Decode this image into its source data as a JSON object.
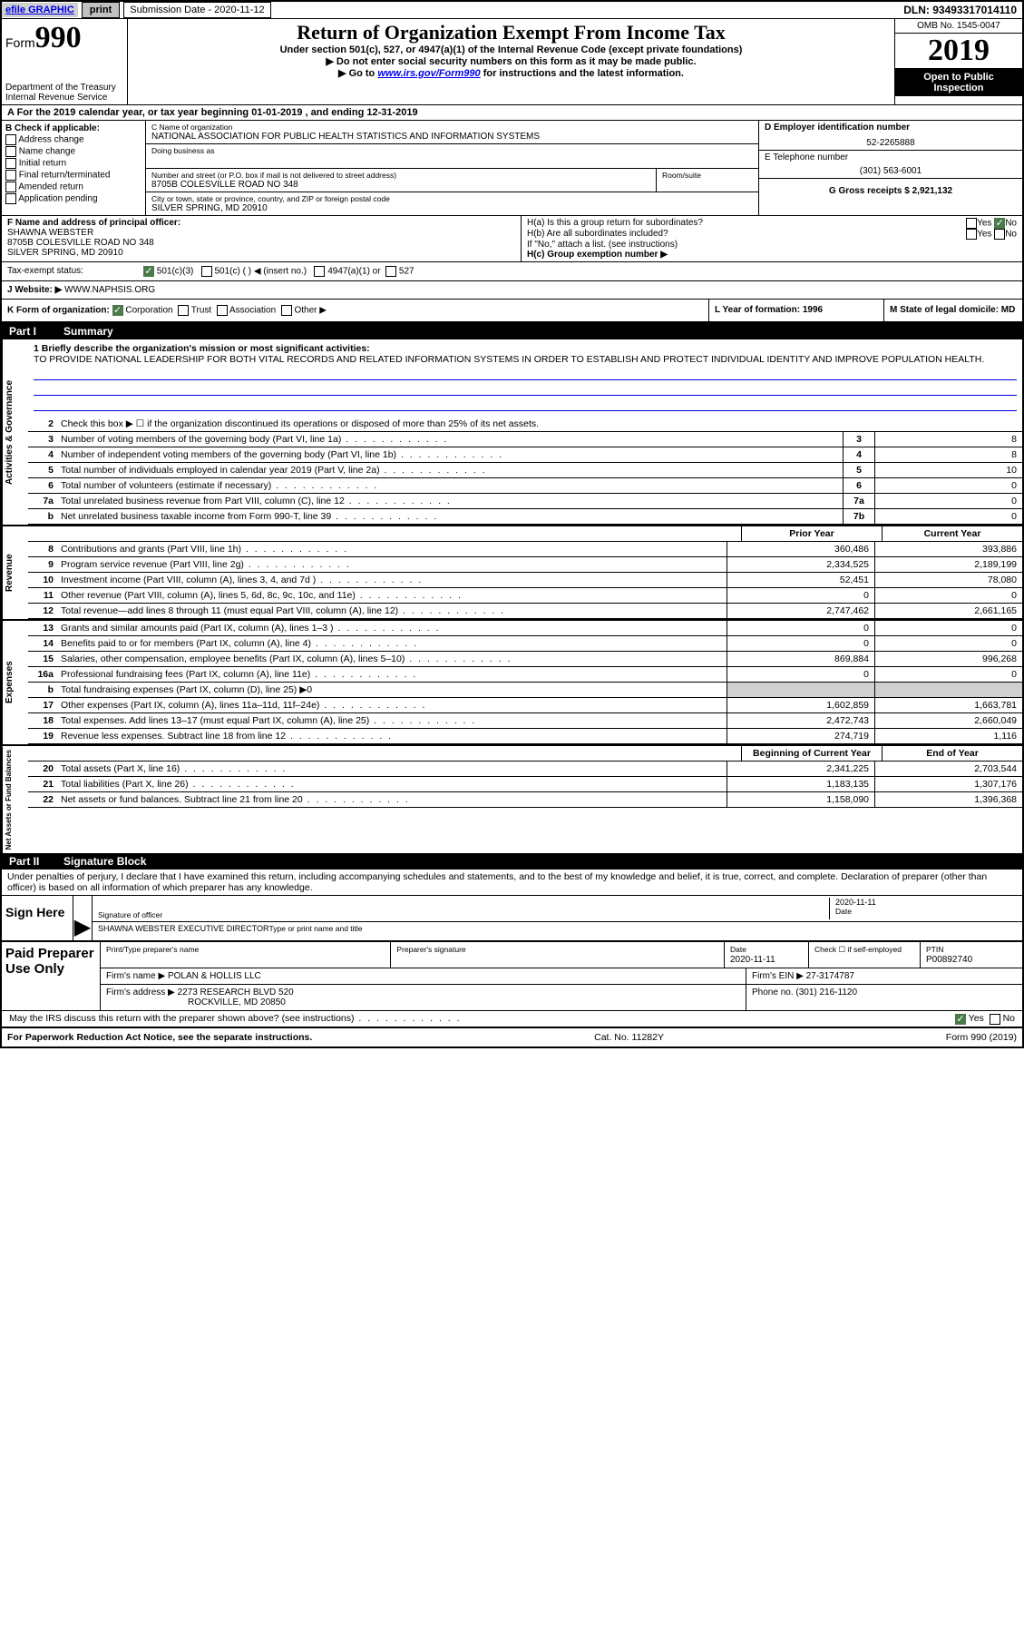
{
  "topbar": {
    "efile": "efile GRAPHIC",
    "print": "print",
    "sub_date_label": "Submission Date - 2020-11-12",
    "dln": "DLN: 93493317014110"
  },
  "header": {
    "form_word": "Form",
    "form_num": "990",
    "dept1": "Department of the Treasury",
    "dept2": "Internal Revenue Service",
    "title": "Return of Organization Exempt From Income Tax",
    "sub1": "Under section 501(c), 527, or 4947(a)(1) of the Internal Revenue Code (except private foundations)",
    "sub2": "▶ Do not enter social security numbers on this form as it may be made public.",
    "sub3_pre": "▶ Go to ",
    "sub3_link": "www.irs.gov/Form990",
    "sub3_post": " for instructions and the latest information.",
    "omb": "OMB No. 1545-0047",
    "year": "2019",
    "insp1": "Open to Public",
    "insp2": "Inspection"
  },
  "rowA": "A For the 2019 calendar year, or tax year beginning 01-01-2019   , and ending 12-31-2019",
  "boxB": {
    "title": "B Check if applicable:",
    "opts": [
      "Address change",
      "Name change",
      "Initial return",
      "Final return/terminated",
      "Amended return",
      "Application pending"
    ]
  },
  "boxC": {
    "name_label": "C Name of organization",
    "name": "NATIONAL ASSOCIATION FOR PUBLIC HEALTH STATISTICS AND INFORMATION SYSTEMS",
    "dba_label": "Doing business as",
    "addr_label": "Number and street (or P.O. box if mail is not delivered to street address)",
    "room_label": "Room/suite",
    "addr": "8705B COLESVILLE ROAD NO 348",
    "city_label": "City or town, state or province, country, and ZIP or foreign postal code",
    "city": "SILVER SPRING, MD  20910"
  },
  "boxD": {
    "label": "D Employer identification number",
    "val": "52-2265888"
  },
  "boxE": {
    "label": "E Telephone number",
    "val": "(301) 563-6001"
  },
  "boxG": {
    "label": "G Gross receipts $ 2,921,132"
  },
  "boxF": {
    "label": "F  Name and address of principal officer:",
    "name": "SHAWNA WEBSTER",
    "addr1": "8705B COLESVILLE ROAD NO 348",
    "addr2": "SILVER SPRING, MD  20910"
  },
  "boxH": {
    "ha": "H(a)  Is this a group return for subordinates?",
    "hb": "H(b)  Are all subordinates included?",
    "hb_note": "If \"No,\" attach a list. (see instructions)",
    "hc": "H(c)  Group exemption number ▶",
    "yes": "Yes",
    "no": "No"
  },
  "rowI": {
    "label": "Tax-exempt status:",
    "o1": "501(c)(3)",
    "o2": "501(c) (  ) ◀ (insert no.)",
    "o3": "4947(a)(1) or",
    "o4": "527"
  },
  "rowJ": {
    "label": "J   Website: ▶",
    "val": "WWW.NAPHSIS.ORG"
  },
  "rowK": {
    "label": "K Form of organization:",
    "o1": "Corporation",
    "o2": "Trust",
    "o3": "Association",
    "o4": "Other ▶",
    "l_label": "L Year of formation: 1996",
    "m_label": "M State of legal domicile: MD"
  },
  "part1": {
    "num": "Part I",
    "title": "Summary"
  },
  "mission": {
    "line1_label": "1  Briefly describe the organization's mission or most significant activities:",
    "text": "TO PROVIDE NATIONAL LEADERSHIP FOR BOTH VITAL RECORDS AND RELATED INFORMATION SYSTEMS IN ORDER TO ESTABLISH AND PROTECT INDIVIDUAL IDENTITY AND IMPROVE POPULATION HEALTH."
  },
  "side_labels": {
    "gov": "Activities & Governance",
    "rev": "Revenue",
    "exp": "Expenses",
    "net": "Net Assets or Fund Balances"
  },
  "lines_gov": [
    {
      "n": "2",
      "d": "Check this box ▶ ☐  if the organization discontinued its operations or disposed of more than 25% of its net assets."
    },
    {
      "n": "3",
      "d": "Number of voting members of the governing body (Part VI, line 1a)",
      "b": "3",
      "v": "8"
    },
    {
      "n": "4",
      "d": "Number of independent voting members of the governing body (Part VI, line 1b)",
      "b": "4",
      "v": "8"
    },
    {
      "n": "5",
      "d": "Total number of individuals employed in calendar year 2019 (Part V, line 2a)",
      "b": "5",
      "v": "10"
    },
    {
      "n": "6",
      "d": "Total number of volunteers (estimate if necessary)",
      "b": "6",
      "v": "0"
    },
    {
      "n": "7a",
      "d": "Total unrelated business revenue from Part VIII, column (C), line 12",
      "b": "7a",
      "v": "0"
    },
    {
      "n": "b",
      "d": "Net unrelated business taxable income from Form 990-T, line 39",
      "b": "7b",
      "v": "0"
    }
  ],
  "pycy": {
    "py": "Prior Year",
    "cy": "Current Year"
  },
  "lines_rev": [
    {
      "n": "8",
      "d": "Contributions and grants (Part VIII, line 1h)",
      "py": "360,486",
      "cy": "393,886"
    },
    {
      "n": "9",
      "d": "Program service revenue (Part VIII, line 2g)",
      "py": "2,334,525",
      "cy": "2,189,199"
    },
    {
      "n": "10",
      "d": "Investment income (Part VIII, column (A), lines 3, 4, and 7d )",
      "py": "52,451",
      "cy": "78,080"
    },
    {
      "n": "11",
      "d": "Other revenue (Part VIII, column (A), lines 5, 6d, 8c, 9c, 10c, and 11e)",
      "py": "0",
      "cy": "0"
    },
    {
      "n": "12",
      "d": "Total revenue—add lines 8 through 11 (must equal Part VIII, column (A), line 12)",
      "py": "2,747,462",
      "cy": "2,661,165"
    }
  ],
  "lines_exp": [
    {
      "n": "13",
      "d": "Grants and similar amounts paid (Part IX, column (A), lines 1–3 )",
      "py": "0",
      "cy": "0"
    },
    {
      "n": "14",
      "d": "Benefits paid to or for members (Part IX, column (A), line 4)",
      "py": "0",
      "cy": "0"
    },
    {
      "n": "15",
      "d": "Salaries, other compensation, employee benefits (Part IX, column (A), lines 5–10)",
      "py": "869,884",
      "cy": "996,268"
    },
    {
      "n": "16a",
      "d": "Professional fundraising fees (Part IX, column (A), line 11e)",
      "py": "0",
      "cy": "0"
    },
    {
      "n": "b",
      "d": "Total fundraising expenses (Part IX, column (D), line 25) ▶0",
      "shaded": true
    },
    {
      "n": "17",
      "d": "Other expenses (Part IX, column (A), lines 11a–11d, 11f–24e)",
      "py": "1,602,859",
      "cy": "1,663,781"
    },
    {
      "n": "18",
      "d": "Total expenses. Add lines 13–17 (must equal Part IX, column (A), line 25)",
      "py": "2,472,743",
      "cy": "2,660,049"
    },
    {
      "n": "19",
      "d": "Revenue less expenses. Subtract line 18 from line 12",
      "py": "274,719",
      "cy": "1,116"
    }
  ],
  "net_header": {
    "py": "Beginning of Current Year",
    "cy": "End of Year"
  },
  "lines_net": [
    {
      "n": "20",
      "d": "Total assets (Part X, line 16)",
      "py": "2,341,225",
      "cy": "2,703,544"
    },
    {
      "n": "21",
      "d": "Total liabilities (Part X, line 26)",
      "py": "1,183,135",
      "cy": "1,307,176"
    },
    {
      "n": "22",
      "d": "Net assets or fund balances. Subtract line 21 from line 20",
      "py": "1,158,090",
      "cy": "1,396,368"
    }
  ],
  "part2": {
    "num": "Part II",
    "title": "Signature Block"
  },
  "sig": {
    "decl": "Under penalties of perjury, I declare that I have examined this return, including accompanying schedules and statements, and to the best of my knowledge and belief, it is true, correct, and complete. Declaration of preparer (other than officer) is based on all information of which preparer has any knowledge.",
    "sign_here": "Sign Here",
    "sig_officer": "Signature of officer",
    "date_label": "Date",
    "date_val": "2020-11-11",
    "name": "SHAWNA WEBSTER  EXECUTIVE DIRECTOR",
    "type_label": "Type or print name and title"
  },
  "prep": {
    "label": "Paid Preparer Use Only",
    "print_label": "Print/Type preparer's name",
    "sig_label": "Preparer's signature",
    "date_label": "Date",
    "date_val": "2020-11-11",
    "check_label": "Check ☐ if self-employed",
    "ptin_label": "PTIN",
    "ptin_val": "P00892740",
    "firm_name_label": "Firm's name    ▶",
    "firm_name": "POLAN & HOLLIS LLC",
    "firm_ein_label": "Firm's EIN ▶ 27-3174787",
    "firm_addr_label": "Firm's address ▶",
    "firm_addr1": "2273 RESEARCH BLVD 520",
    "firm_addr2": "ROCKVILLE, MD  20850",
    "phone_label": "Phone no. (301) 216-1120",
    "discuss": "May the IRS discuss this return with the preparer shown above? (see instructions)",
    "yes": "Yes",
    "no": "No"
  },
  "footer": {
    "left": "For Paperwork Reduction Act Notice, see the separate instructions.",
    "mid": "Cat. No. 11282Y",
    "right": "Form 990 (2019)"
  }
}
